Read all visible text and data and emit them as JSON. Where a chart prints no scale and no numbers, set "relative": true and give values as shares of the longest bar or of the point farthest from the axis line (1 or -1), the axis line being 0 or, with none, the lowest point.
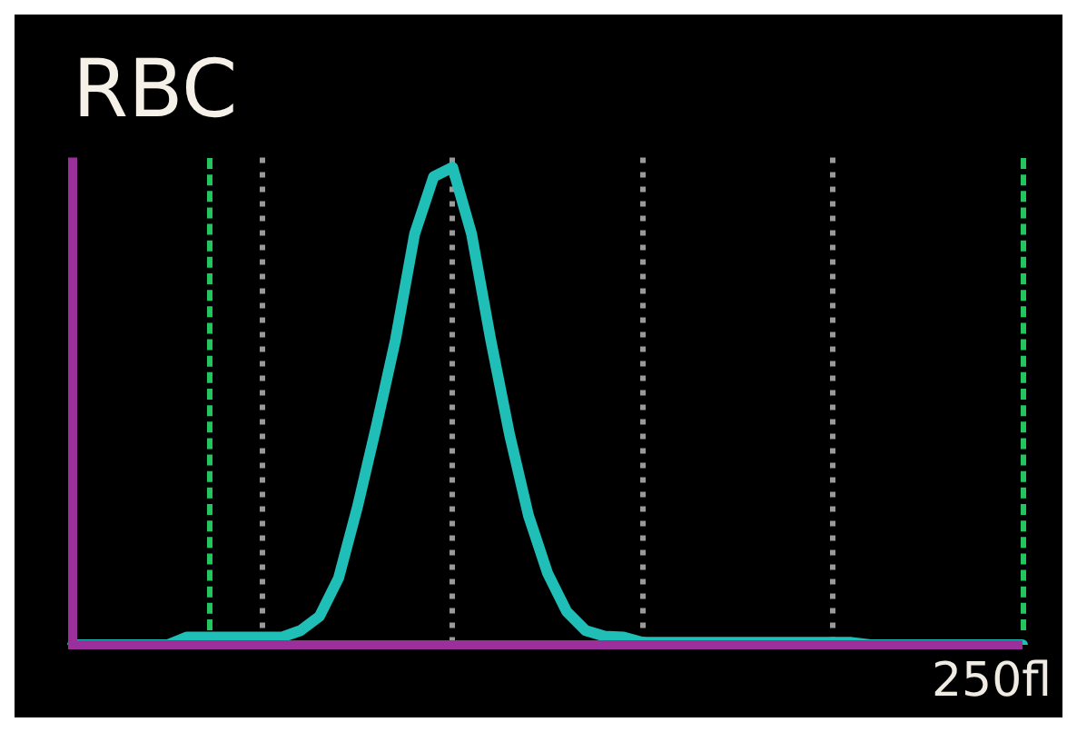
{
  "chart_data": {
    "type": "line",
    "title": "RBC",
    "relative": true,
    "categories": [
      null,
      null,
      null,
      null,
      null,
      null,
      null,
      null,
      null,
      null,
      null,
      null,
      null,
      null,
      null,
      null,
      null,
      null,
      null,
      null,
      null,
      null,
      null,
      null,
      null,
      null,
      null,
      null,
      null,
      null,
      null,
      null,
      null,
      null,
      null,
      null,
      null,
      null,
      null,
      null,
      null,
      null,
      null,
      null,
      null,
      null,
      null,
      null,
      null,
      null,
      null
    ],
    "series": [
      {
        "color": "#1fbfb8",
        "values": [
          0,
          0,
          0,
          0,
          0,
          0,
          0.016,
          0.016,
          0.016,
          0.016,
          0.016,
          0.016,
          0.03,
          0.06,
          0.14,
          0.29,
          0.46,
          0.64,
          0.86,
          0.98,
          1,
          0.86,
          0.64,
          0.44,
          0.27,
          0.15,
          0.07,
          0.03,
          0.018,
          0.016,
          0.005,
          0.005,
          0.005,
          0.005,
          0.005,
          0.005,
          0.005,
          0.005,
          0.005,
          0.005,
          0.005,
          0.005,
          0,
          0,
          0,
          0,
          0,
          0,
          0,
          0,
          0
        ]
      }
    ],
    "annotations": [
      "250fl"
    ],
    "tick_labels": false,
    "grid": "x",
    "legend": false,
    "marker": "none",
    "line_style": "solid"
  }
}
